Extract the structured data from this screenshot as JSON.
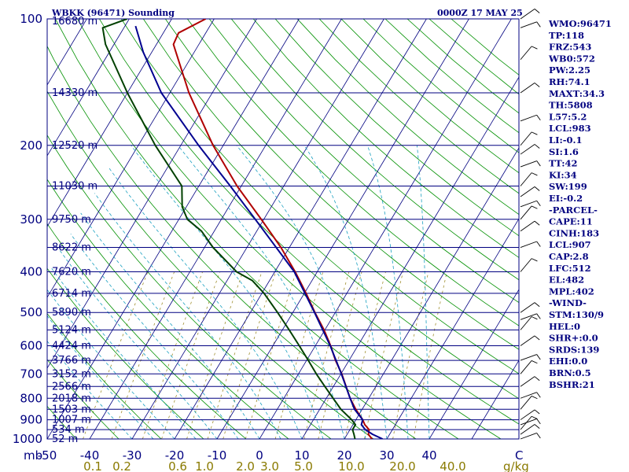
{
  "chart_data": {
    "type": "line",
    "subtype": "skew-t log-p sounding",
    "title": "WBKK (96471) Sounding",
    "time_label": "0000Z 17 MAY 25",
    "pressure_unit_label": "mb",
    "pressure_ticks": [
      100,
      200,
      300,
      400,
      500,
      600,
      700,
      800,
      900,
      1000
    ],
    "pressure_range": [
      1000,
      100
    ],
    "temperature_ticks": [
      -50,
      -40,
      -30,
      -20,
      -10,
      0,
      10,
      20,
      30,
      40
    ],
    "temperature_unit_label": "C",
    "mixing_ratio_labels": [
      "0.1",
      "0.2",
      "0.6",
      "1.0",
      "2.0",
      "3.0",
      "5.0",
      "10.0",
      "20.0",
      "40.0"
    ],
    "mixing_ratio_unit_label": "g/kg",
    "height_labels": [
      {
        "p": 100,
        "text": "16680 m"
      },
      {
        "p": 150,
        "text": "14330 m"
      },
      {
        "p": 200,
        "text": "12520 m"
      },
      {
        "p": 250,
        "text": "11030 m"
      },
      {
        "p": 300,
        "text": "9750 m"
      },
      {
        "p": 350,
        "text": "8622 m"
      },
      {
        "p": 400,
        "text": "7620 m"
      },
      {
        "p": 450,
        "text": "6714 m"
      },
      {
        "p": 500,
        "text": "5890 m"
      },
      {
        "p": 550,
        "text": "5124 m"
      },
      {
        "p": 600,
        "text": "4424 m"
      },
      {
        "p": 650,
        "text": "3766 m"
      },
      {
        "p": 700,
        "text": "3152 m"
      },
      {
        "p": 750,
        "text": "2566 m"
      },
      {
        "p": 800,
        "text": "2018 m"
      },
      {
        "p": 850,
        "text": "1503 m"
      },
      {
        "p": 900,
        "text": "1007 m"
      },
      {
        "p": 950,
        "text": "534 m"
      },
      {
        "p": 1000,
        "text": "52 m"
      }
    ],
    "series": [
      {
        "color": "#b00000",
        "points": [
          [
            1000,
            26.5
          ],
          [
            975,
            25.0
          ],
          [
            950,
            24.5
          ],
          [
            925,
            22.8
          ],
          [
            900,
            21.6
          ],
          [
            850,
            18.5
          ],
          [
            800,
            15.6
          ],
          [
            750,
            13.0
          ],
          [
            700,
            10.2
          ],
          [
            650,
            6.8
          ],
          [
            600,
            3.6
          ],
          [
            550,
            -0.2
          ],
          [
            500,
            -4.8
          ],
          [
            450,
            -9.6
          ],
          [
            400,
            -15.2
          ],
          [
            350,
            -22.0
          ],
          [
            300,
            -30.6
          ],
          [
            250,
            -41.0
          ],
          [
            200,
            -52.4
          ],
          [
            150,
            -65.5
          ],
          [
            115,
            -76.0
          ],
          [
            108,
            -76.4
          ],
          [
            100,
            -72.0
          ]
        ]
      },
      {
        "color": "#000090",
        "points": [
          [
            1000,
            29.0
          ],
          [
            975,
            26.0
          ],
          [
            950,
            23.6
          ],
          [
            925,
            22.0
          ],
          [
            900,
            21.6
          ],
          [
            850,
            18.2
          ],
          [
            800,
            15.6
          ],
          [
            700,
            10.1
          ],
          [
            600,
            3.5
          ],
          [
            500,
            -4.9
          ],
          [
            400,
            -15.4
          ],
          [
            300,
            -32.0
          ],
          [
            250,
            -42.6
          ],
          [
            200,
            -55.8
          ],
          [
            150,
            -72.0
          ],
          [
            120,
            -82.0
          ],
          [
            104,
            -87.5
          ]
        ]
      },
      {
        "color": "#004000",
        "points": [
          [
            1000,
            22.5
          ],
          [
            975,
            21.6
          ],
          [
            950,
            20.6
          ],
          [
            925,
            20.6
          ],
          [
            900,
            19.0
          ],
          [
            850,
            15.0
          ],
          [
            800,
            11.6
          ],
          [
            750,
            8.0
          ],
          [
            700,
            4.2
          ],
          [
            650,
            0.4
          ],
          [
            600,
            -3.8
          ],
          [
            550,
            -8.4
          ],
          [
            500,
            -13.6
          ],
          [
            450,
            -19.5
          ],
          [
            420,
            -24.0
          ],
          [
            400,
            -29.0
          ],
          [
            350,
            -38.0
          ],
          [
            320,
            -43.0
          ],
          [
            300,
            -48.0
          ],
          [
            280,
            -51.0
          ],
          [
            250,
            -54.0
          ],
          [
            200,
            -66.0
          ],
          [
            150,
            -80.0
          ],
          [
            115,
            -92.0
          ],
          [
            105,
            -95.0
          ],
          [
            100,
            -90.5
          ]
        ]
      }
    ]
  },
  "indices": [
    "WMO:96471",
    "TP:118",
    "FRZ:543",
    "WB0:572",
    "PW:2.25",
    "RH:74.1",
    "MAXT:34.3",
    "TH:5808",
    "L57:5.2",
    "LCL:983",
    "LI:-0.1",
    "SI:1.6",
    "TT:42",
    "KI:34",
    "SW:199",
    "EI:-0.2",
    "-PARCEL-",
    "CAPE:11",
    "CINH:183",
    "LCL:907",
    "CAP:2.8",
    "LFC:512",
    "EL:482",
    "MPL:402",
    "-WIND-",
    "STM:130/9",
    "HEL:0",
    "SHR+:0.0",
    "SRDS:139",
    "EHI:0.0",
    "BRN:0.5",
    "BSHR:21"
  ],
  "wind_barb_pressures": [
    100,
    105,
    125,
    150,
    175,
    200,
    210,
    225,
    250,
    265,
    280,
    300,
    320,
    350,
    400,
    500,
    520,
    550,
    600,
    650,
    700,
    750,
    800,
    850,
    900,
    925,
    950,
    975,
    1000
  ]
}
